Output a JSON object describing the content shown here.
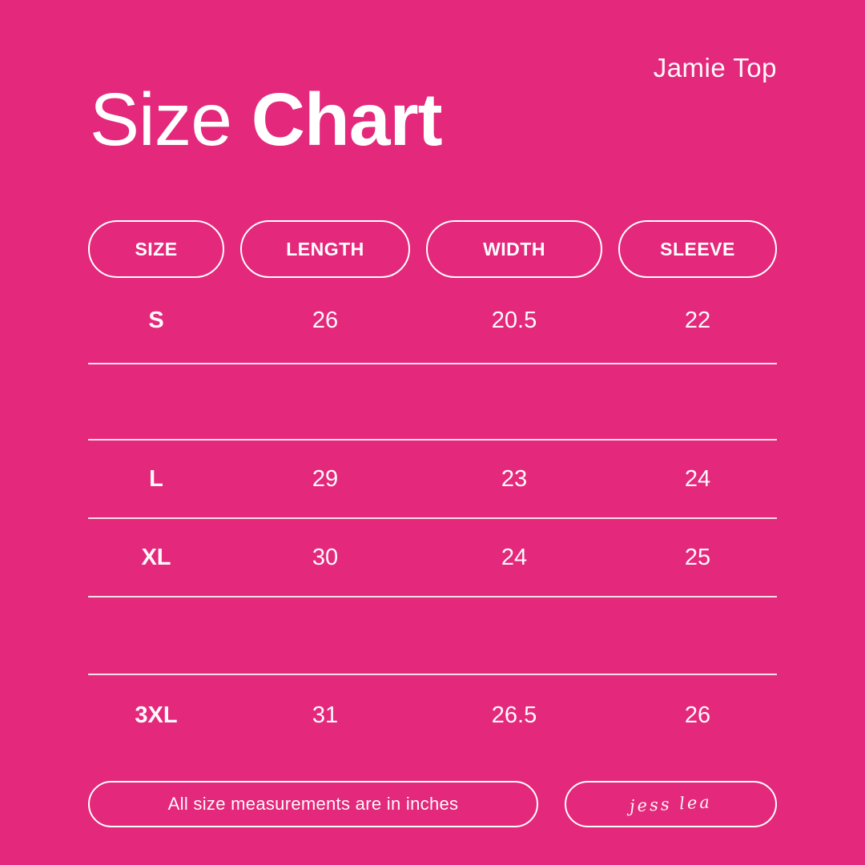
{
  "header": {
    "product_name": "Jamie Top",
    "title_regular": "Size",
    "title_bold": "Chart"
  },
  "table": {
    "columns": [
      {
        "id": "size",
        "label": "SIZE"
      },
      {
        "id": "length",
        "label": "LENGTH"
      },
      {
        "id": "width",
        "label": "WIDTH"
      },
      {
        "id": "sleeve",
        "label": "SLEEVE"
      }
    ],
    "rows": [
      {
        "size": "S",
        "length": "26",
        "width": "20.5",
        "sleeve": "22"
      },
      {
        "size": "",
        "length": "",
        "width": "",
        "sleeve": ""
      },
      {
        "size": "L",
        "length": "29",
        "width": "23",
        "sleeve": "24"
      },
      {
        "size": "XL",
        "length": "30",
        "width": "24",
        "sleeve": "25"
      },
      {
        "size": "",
        "length": "",
        "width": "",
        "sleeve": ""
      },
      {
        "size": "3XL",
        "length": "31",
        "width": "26.5",
        "sleeve": "26"
      }
    ]
  },
  "footer": {
    "note": "All size measurements are in inches",
    "brand_signature": "jess lea"
  },
  "colors": {
    "background": "#E4287C",
    "text": "#FFFFFF",
    "separator_line": "rgba(255,255,255,0.85)"
  },
  "chart_data": {
    "type": "table",
    "title": "Size Chart",
    "subtitle": "Jamie Top",
    "columns": [
      "SIZE",
      "LENGTH",
      "WIDTH",
      "SLEEVE"
    ],
    "rows": [
      [
        "S",
        26,
        20.5,
        22
      ],
      [
        "",
        "",
        "",
        ""
      ],
      [
        "L",
        29,
        23,
        24
      ],
      [
        "XL",
        30,
        24,
        25
      ],
      [
        "",
        "",
        "",
        ""
      ],
      [
        "3XL",
        31,
        26.5,
        26
      ]
    ],
    "annotations": [
      "All size measurements are in inches",
      "jess lea"
    ]
  }
}
